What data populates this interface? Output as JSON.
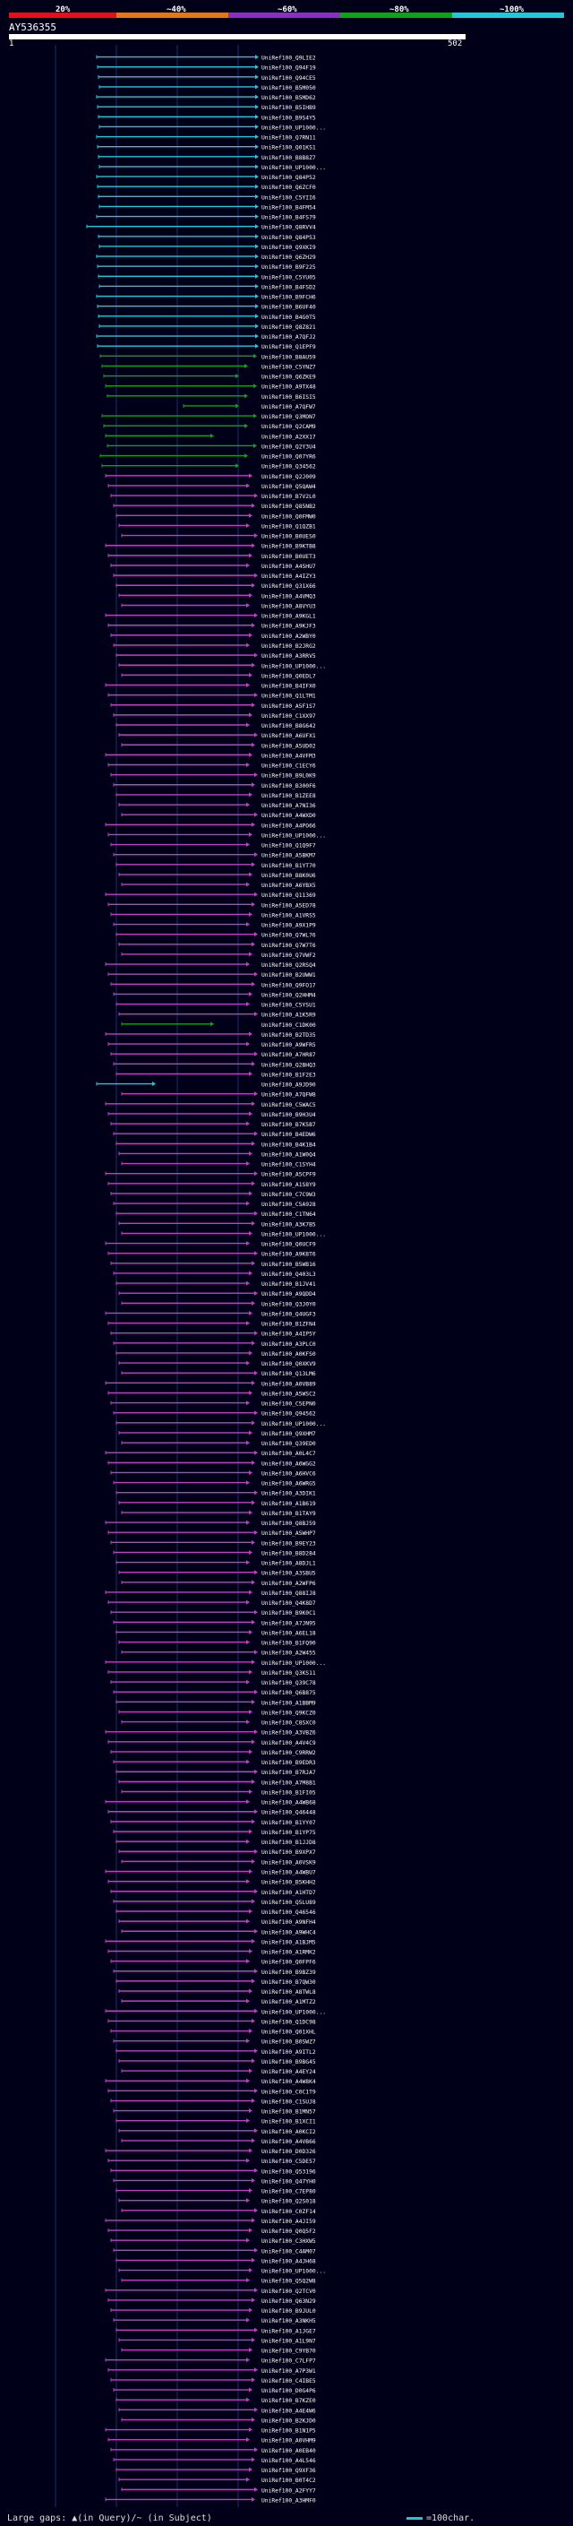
{
  "header": {
    "bins": [
      {
        "label": "20%",
        "color": "#e01020"
      },
      {
        "label": "~40%",
        "color": "#e07820"
      },
      {
        "label": "~60%",
        "color": "#8a30c0"
      },
      {
        "label": "~80%",
        "color": "#10a020"
      },
      {
        "label": "~100%",
        "color": "#20c8d8"
      }
    ],
    "query_name": "AY536355",
    "ruler_start": "1",
    "ruler_end": "502"
  },
  "footer": {
    "gaps_text": "Large gaps: ▲(in Query)/~ (in Subject)",
    "scale_text": "=100char."
  },
  "hits": [
    "UniRef100_Q9LIE2",
    "UniRef100_Q94F19",
    "UniRef100_Q94CE5",
    "UniRef100_B5M050",
    "UniRef100_B5MD62",
    "UniRef100_B5IHB9",
    "UniRef100_B9S4Y5",
    "UniRef100_UP1000...",
    "UniRef100_Q7RN11",
    "UniRef100_Q01KS1",
    "UniRef100_B8B8Z7",
    "UniRef100_UP1000...",
    "UniRef100_Q84P52",
    "UniRef100_Q6ZCF0",
    "UniRef100_C5YII6",
    "UniRef100_B4FM54",
    "UniRef100_B4FS79",
    "UniRef100_Q8RVV4",
    "UniRef100_Q84P53",
    "UniRef100_Q9XKI9",
    "UniRef100_Q6ZH29",
    "UniRef100_B9F225",
    "UniRef100_C5YU05",
    "UniRef100_B4FSD2",
    "UniRef100_B9FCH6",
    "UniRef100_B6UF40",
    "UniRef100_B4G0T5",
    "UniRef100_Q8Z821",
    "UniRef100_A7QFJ2",
    "UniRef100_Q1EPF9",
    "UniRef100_B8AU59",
    "UniRef100_C5YNZ7",
    "UniRef100_Q6ZKE9",
    "UniRef100_A9TX48",
    "UniRef100_B6ISI5",
    "UniRef100_A7QFW7",
    "UniRef100_Q3MON7",
    "UniRef100_Q2CAM9",
    "UniRef100_A2XX17",
    "UniRef100_Q2Y3U4",
    "UniRef100_Q07YR6",
    "UniRef100_Q34562",
    "UniRef100_Q2J009",
    "UniRef100_Q5QAW4",
    "UniRef100_B7V2L0",
    "UniRef100_Q85NB2",
    "UniRef100_Q0FMW0",
    "UniRef100_Q1QZB1",
    "UniRef100_B0UES0",
    "UniRef100_B9KTB8",
    "UniRef100_B0UET3",
    "UniRef100_A4SHU7",
    "UniRef100_A4IZY3",
    "UniRef100_Q31X66",
    "UniRef100_A4VMQ3",
    "UniRef100_A8VYU3",
    "UniRef100_A9KGL1",
    "UniRef100_A9KJF3",
    "UniRef100_A2WBY0",
    "UniRef100_B2JRG2",
    "UniRef100_A3RRV5",
    "UniRef100_UP1000...",
    "UniRef100_Q0EDL7",
    "UniRef100_B4IFX0",
    "UniRef100_Q1LTM1",
    "UniRef100_A5F1S7",
    "UniRef100_C1XX97",
    "UniRef100_B8G642",
    "UniRef100_A6UFX1",
    "UniRef100_A5UD02",
    "UniRef100_A4VFM3",
    "UniRef100_C1ECY6",
    "UniRef100_B9L0K9",
    "UniRef100_B300F6",
    "UniRef100_B1ZEE8",
    "UniRef100_A7NI36",
    "UniRef100_A4WXD0",
    "UniRef100_A4PO66",
    "UniRef100_UP1000...",
    "UniRef100_Q1Q9F7",
    "UniRef100_A5BKM7",
    "UniRef100_B1YT70",
    "UniRef100_B8K0U6",
    "UniRef100_A6YBX5",
    "UniRef100_Q11369",
    "UniRef100_A5ED78",
    "UniRef100_A1VRS5",
    "UniRef100_A9X1P9",
    "UniRef100_Q7WL76",
    "UniRef100_Q7W7T6",
    "UniRef100_Q7VWF2",
    "UniRef100_Q2RSQ4",
    "UniRef100_B2UWW1",
    "UniRef100_Q9FO17",
    "UniRef100_Q2HHM4",
    "UniRef100_C5YSU1",
    "UniRef100_A1K5R9",
    "UniRef100_C1DK00",
    "UniRef100_B2TD35",
    "UniRef100_A9WFR5",
    "UniRef100_A7HR87",
    "UniRef100_Q2BHQ3",
    "UniRef100_B1F2E3",
    "UniRef100_A9JD90",
    "UniRef100_A7QFW8",
    "UniRef100_C5WAC5",
    "UniRef100_B9H3U4",
    "UniRef100_B7K5B7",
    "UniRef100_B4EDW6",
    "UniRef100_B4K1B4",
    "UniRef100_A1W0Q4",
    "UniRef100_C1SYH4",
    "UniRef100_A5CPF9",
    "UniRef100_A1S8Y9",
    "UniRef100_C7C9W3",
    "UniRef100_C5A928",
    "UniRef100_C1TN64",
    "UniRef100_A3K7B5",
    "UniRef100_UP1000...",
    "UniRef100_Q0UCF9",
    "UniRef100_A9K8T6",
    "UniRef100_B5WB16",
    "UniRef100_Q403L3",
    "UniRef100_B1JV41",
    "UniRef100_A9QDD4",
    "UniRef100_Q3J0Y0",
    "UniRef100_Q4UGF3",
    "UniRef100_B1ZFN4",
    "UniRef100_A4IP5Y",
    "UniRef100_A3PLC0",
    "UniRef100_A0KFS0",
    "UniRef100_Q0XKV9",
    "UniRef100_Q13LM6",
    "UniRef100_A0VB89",
    "UniRef100_A5WSC2",
    "UniRef100_C5EPN0",
    "UniRef100_Q94562",
    "UniRef100_UP1000...",
    "UniRef100_Q9XHM7",
    "UniRef100_Q39ED0",
    "UniRef100_A0L4C7",
    "UniRef100_A6WGG2",
    "UniRef100_A6HVC6",
    "UniRef100_A6WRG5",
    "UniRef100_A3DIK1",
    "UniRef100_A1B619",
    "UniRef100_B1TAY9",
    "UniRef100_Q8BJ59",
    "UniRef100_A5WHP7",
    "UniRef100_B9EY23",
    "UniRef100_B8D284",
    "UniRef100_A8DJL1",
    "UniRef100_A3SBU5",
    "UniRef100_A2WFP6",
    "UniRef100_Q88IJ8",
    "UniRef100_Q4K8D7",
    "UniRef100_B9K0C1",
    "UniRef100_A7JN95",
    "UniRef100_A6EL18",
    "UniRef100_B1FQ90",
    "UniRef100_A2W455",
    "UniRef100_UP1000...",
    "UniRef100_Q3KS11",
    "UniRef100_Q39C78",
    "UniRef100_Q6B875",
    "UniRef100_A1BBM9",
    "UniRef100_Q9KCZ0",
    "UniRef100_C8SXC0",
    "UniRef100_A3VBZ6",
    "UniRef100_A4V4C9",
    "UniRef100_C9RRW2",
    "UniRef100_B9EDR3",
    "UniRef100_B7RJA7",
    "UniRef100_A7M8B1",
    "UniRef100_B1FI05",
    "UniRef100_A4WB68",
    "UniRef100_Q46448",
    "UniRef100_B1YY07",
    "UniRef100_B1YP75",
    "UniRef100_B1JJD8",
    "UniRef100_B9XPX7",
    "UniRef100_A0VSK9",
    "UniRef100_A4WBU7",
    "UniRef100_B5KHH2",
    "UniRef100_A1HTD7",
    "UniRef100_Q5LU89",
    "UniRef100_Q46546",
    "UniRef100_A9NFH4",
    "UniRef100_A9WHC4",
    "UniRef100_A1BJM5",
    "UniRef100_A1RMK2",
    "UniRef100_Q0FPF6",
    "UniRef100_B9BZ39",
    "UniRef100_B7QW30",
    "UniRef100_A8TWL8",
    "UniRef100_A1MTZ2",
    "UniRef100_UP1000...",
    "UniRef100_Q1DC98",
    "UniRef100_Q01XHL",
    "UniRef100_B0SWZ7",
    "UniRef100_A9ITL2",
    "UniRef100_B9BG45",
    "UniRef100_A4EY24",
    "UniRef100_A4W8K4",
    "UniRef100_C0C1T9",
    "UniRef100_C1SUJ8",
    "UniRef100_B1MN57",
    "UniRef100_B1XCI1",
    "UniRef100_A0KCI2",
    "UniRef100_A4VB66",
    "UniRef100_D0D326",
    "UniRef100_C5DE57",
    "UniRef100_Q53196",
    "UniRef100_Q47YH0",
    "UniRef100_C7EP80",
    "UniRef100_Q2S018",
    "UniRef100_C0ZF14",
    "UniRef100_A4JI59",
    "UniRef100_Q0Q5F2",
    "UniRef100_C3HXW5",
    "UniRef100_C4AM07",
    "UniRef100_A4JH68",
    "UniRef100_UP1000...",
    "UniRef100_Q5Q2W8",
    "UniRef100_Q2TCV0",
    "UniRef100_Q63N29",
    "UniRef100_B9JUL0",
    "UniRef100_A3NKH5",
    "UniRef100_A1JGE7",
    "UniRef100_A1L9N7",
    "UniRef100_C9YB70",
    "UniRef100_C7LFP7",
    "UniRef100_A7P3W1",
    "UniRef100_C4IBE5",
    "UniRef100_D0G4P6",
    "UniRef100_B7KZE0",
    "UniRef100_A4E4W6",
    "UniRef100_B2KJD0",
    "UniRef100_B1N1P5",
    "UniRef100_A0VHM9",
    "UniRef100_A0EB40",
    "UniRef100_A4L546",
    "UniRef100_Q9XF36",
    "UniRef100_B0T4C2",
    "UniRef100_A2FYY7",
    "UniRef100_A3HMF0"
  ]
}
